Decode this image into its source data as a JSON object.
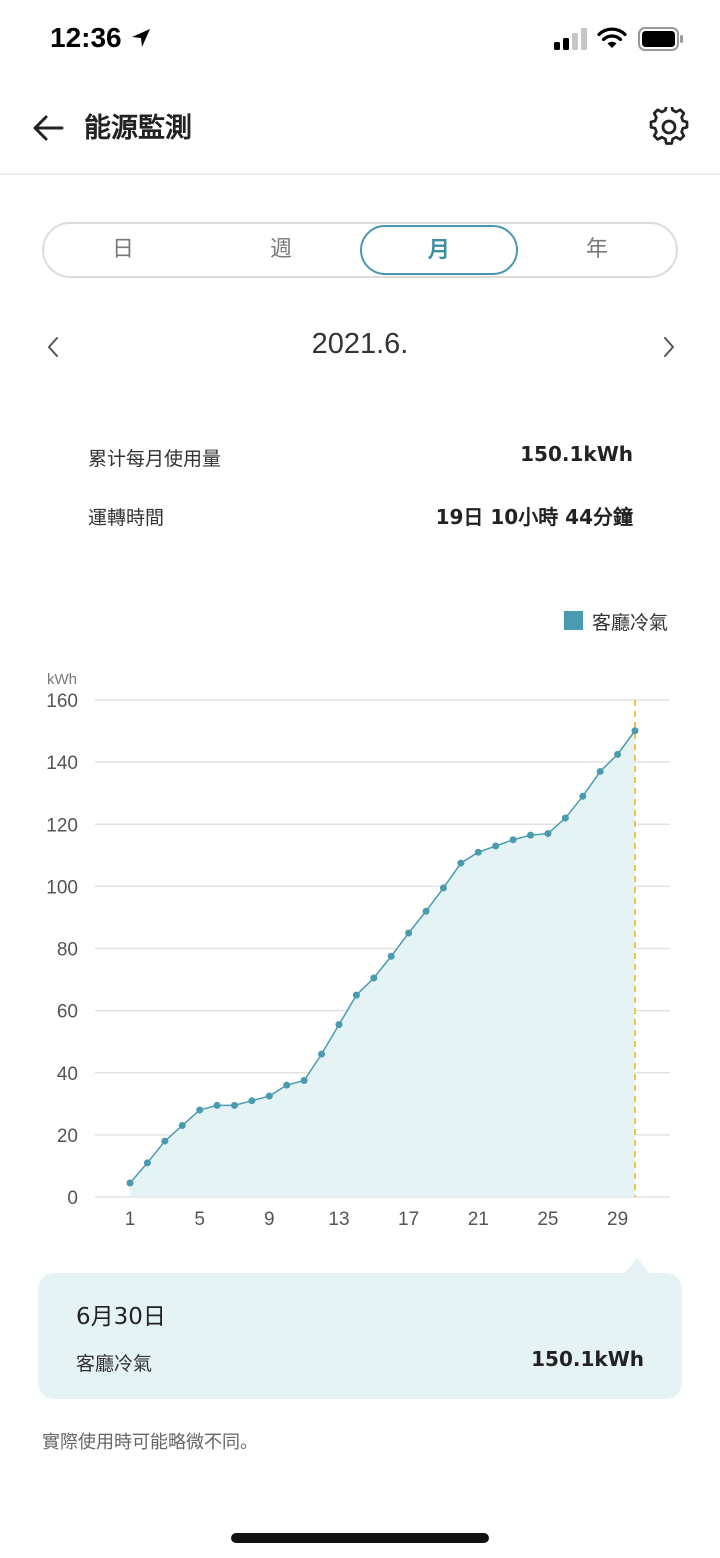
{
  "status_bar": {
    "time": "12:36"
  },
  "header": {
    "title": "能源監測"
  },
  "period_tabs": [
    {
      "label": "日",
      "active": false
    },
    {
      "label": "週",
      "active": false
    },
    {
      "label": "月",
      "active": true
    },
    {
      "label": "年",
      "active": false
    }
  ],
  "date_nav": {
    "label": "2021.6."
  },
  "stats": [
    {
      "label": "累计每月使用量",
      "value": "150.1kWh"
    },
    {
      "label": "運轉時間",
      "value": "19日 10小時 44分鐘"
    }
  ],
  "colors": {
    "accent": "#4a97ad",
    "series": "#4a9bb0",
    "fill": "#e6f3f5",
    "selection_line": "#f2c14e"
  },
  "chart_data": {
    "type": "area",
    "ylabel": "kWh",
    "ylim": [
      0,
      160
    ],
    "y_ticks": [
      "0",
      "20",
      "40",
      "60",
      "80",
      "100",
      "120",
      "140",
      "160"
    ],
    "x_ticks": [
      "1",
      "5",
      "9",
      "13",
      "17",
      "21",
      "25",
      "29"
    ],
    "grid": true,
    "legend_position": "top-right",
    "series": [
      {
        "name": "客廳冷氣",
        "x": [
          1,
          2,
          3,
          4,
          5,
          6,
          7,
          8,
          9,
          10,
          11,
          12,
          13,
          14,
          15,
          16,
          17,
          18,
          19,
          20,
          21,
          22,
          23,
          24,
          25,
          26,
          27,
          28,
          29,
          30
        ],
        "values": [
          4.5,
          11,
          18,
          23,
          28,
          29.5,
          29.5,
          31,
          32.5,
          36,
          37.5,
          46,
          55.5,
          65,
          70.5,
          77.5,
          85,
          92,
          99.5,
          107.5,
          111,
          113,
          115,
          116.5,
          117,
          122,
          129,
          137,
          142.5,
          150.1
        ]
      }
    ],
    "selected_x": 30
  },
  "tooltip": {
    "date": "6月30日",
    "series_name": "客廳冷氣",
    "value": "150.1kWh"
  },
  "disclaimer": "實際使用時可能略微不同。"
}
